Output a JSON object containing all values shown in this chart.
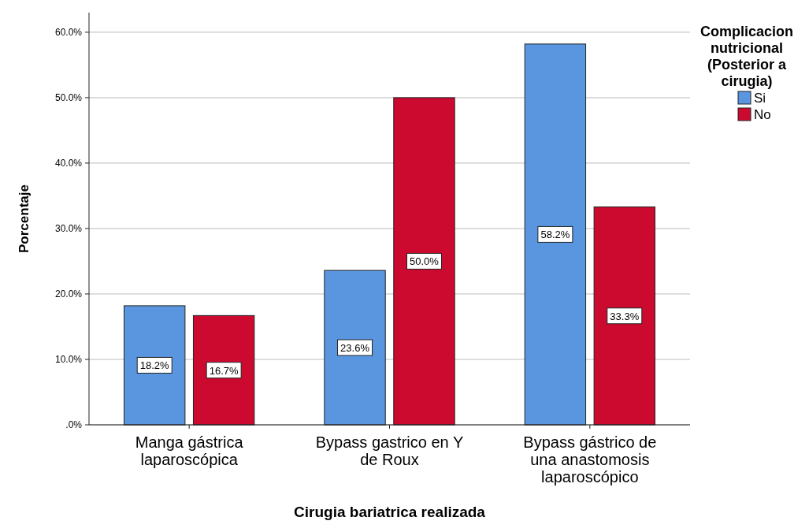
{
  "chart_data": {
    "type": "bar",
    "xlabel": "Cirugia bariatrica realizada",
    "ylabel": "Porcentaje",
    "legend_title": "Complicacion nutricional (Posterior a cirugia)",
    "legend": "right",
    "categories": [
      "Manga gástrica laparoscópica",
      "Bypass gastrico en Y de Roux",
      "Bypass gástrico de una anastomosis laparoscópico"
    ],
    "series": [
      {
        "name": "Si",
        "color": "#5a96e0",
        "values": [
          18.2,
          23.6,
          58.2
        ],
        "value_labels": [
          "18.2%",
          "23.6%",
          "58.2%"
        ]
      },
      {
        "name": "No",
        "color": "#cc0a2f",
        "values": [
          16.7,
          50.0,
          33.3
        ],
        "value_labels": [
          "16.7%",
          "50.0%",
          "33.3%"
        ]
      }
    ],
    "ylim": [
      0,
      63
    ],
    "yticks": [
      {
        "value": 0,
        "label": ".0%"
      },
      {
        "value": 10,
        "label": "10.0%"
      },
      {
        "value": 20,
        "label": "20.0%"
      },
      {
        "value": 30,
        "label": "30.0%"
      },
      {
        "value": 40,
        "label": "40.0%"
      },
      {
        "value": 50,
        "label": "50.0%"
      },
      {
        "value": 60,
        "label": "60.0%"
      }
    ],
    "grid": "y"
  }
}
